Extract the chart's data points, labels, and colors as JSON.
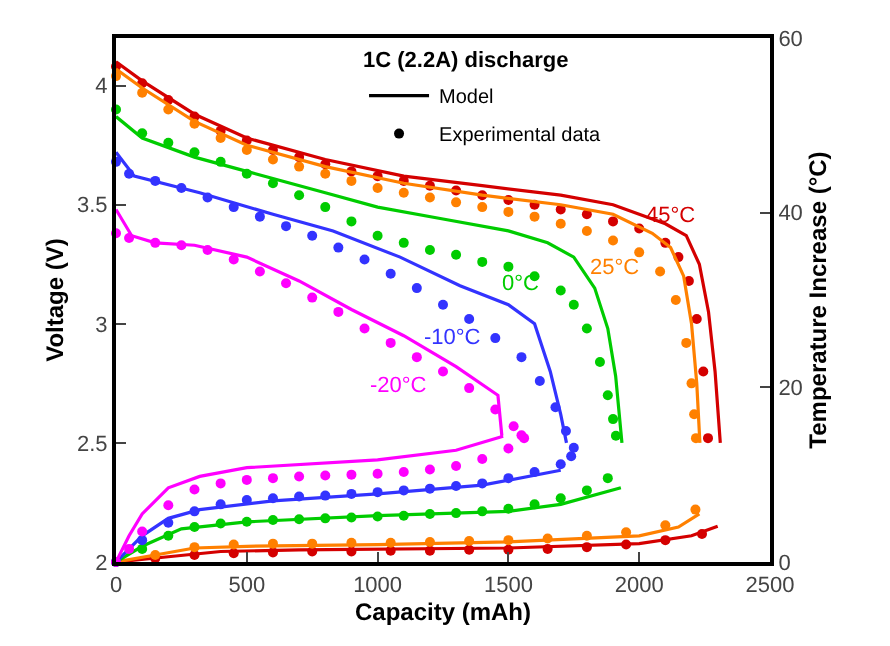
{
  "chart_data": {
    "type": "line",
    "xlabel": "Capacity (mAh)",
    "ylabel": "Voltage (V)",
    "y2label": "Temperature Increase (°C)",
    "legend_title": "1C (2.2A) discharge",
    "legend": "top right",
    "line_style": "solid",
    "xlim": [
      0,
      2500
    ],
    "xticks": [
      0,
      500,
      1000,
      1500,
      2000,
      2500
    ],
    "ylim": [
      2,
      4.2
    ],
    "yticks": [
      2,
      2.5,
      3,
      3.5,
      4
    ],
    "y2lim": [
      0,
      60
    ],
    "y2ticks": [
      0,
      20,
      40,
      60
    ],
    "annotations": [
      {
        "text": "45°C",
        "x": 2180,
        "y": 3.37
      },
      {
        "text": "25°C",
        "x": 2120,
        "y": 3.32
      },
      {
        "text": "0°C",
        "x": 1750,
        "y": 3.28
      },
      {
        "text": "-10°C",
        "x": 1315,
        "y": 3.16
      },
      {
        "text": "-20°C",
        "x": 1100,
        "y": 2.95
      }
    ],
    "series": [
      {
        "name": "Model",
        "color": "#000000"
      },
      {
        "type": "scatter",
        "marker": "circle",
        "name": "Experimental data",
        "color": "#000000"
      },
      {
        "color": "#d40000",
        "x": [
          0,
          100,
          300,
          500,
          800,
          1100,
          1400,
          1700,
          1900,
          2100,
          2180,
          2230,
          2265,
          2290,
          2310
        ],
        "values": [
          4.1,
          4.02,
          3.88,
          3.78,
          3.69,
          3.62,
          3.58,
          3.54,
          3.5,
          3.42,
          3.37,
          3.25,
          3.05,
          2.8,
          2.5
        ]
      },
      {
        "type": "scatter",
        "marker": "circle",
        "color": "#d40000",
        "x": [
          0,
          100,
          200,
          300,
          400,
          500,
          600,
          700,
          800,
          900,
          1000,
          1100,
          1200,
          1300,
          1400,
          1500,
          1600,
          1700,
          1800,
          1900,
          2000,
          2100,
          2150,
          2190,
          2220,
          2245,
          2263
        ],
        "values": [
          4.08,
          4.01,
          3.94,
          3.87,
          3.81,
          3.77,
          3.73,
          3.7,
          3.67,
          3.64,
          3.62,
          3.6,
          3.58,
          3.56,
          3.54,
          3.52,
          3.5,
          3.48,
          3.46,
          3.43,
          3.4,
          3.34,
          3.28,
          3.18,
          3.02,
          2.8,
          2.52
        ]
      },
      {
        "color": "#ff8000",
        "x": [
          0,
          100,
          300,
          500,
          800,
          1100,
          1400,
          1700,
          1900,
          2050,
          2120,
          2170,
          2200,
          2220,
          2232
        ],
        "values": [
          4.07,
          3.99,
          3.85,
          3.75,
          3.66,
          3.59,
          3.54,
          3.5,
          3.46,
          3.38,
          3.32,
          3.2,
          3.0,
          2.75,
          2.5
        ]
      },
      {
        "type": "scatter",
        "marker": "circle",
        "color": "#ff8000",
        "x": [
          0,
          100,
          200,
          300,
          400,
          500,
          600,
          700,
          800,
          900,
          1000,
          1100,
          1200,
          1300,
          1400,
          1500,
          1600,
          1700,
          1800,
          1900,
          2000,
          2080,
          2140,
          2180,
          2200,
          2210,
          2217
        ],
        "values": [
          4.04,
          3.97,
          3.9,
          3.84,
          3.78,
          3.73,
          3.69,
          3.66,
          3.63,
          3.6,
          3.57,
          3.55,
          3.53,
          3.51,
          3.49,
          3.47,
          3.45,
          3.42,
          3.39,
          3.35,
          3.3,
          3.22,
          3.1,
          2.92,
          2.75,
          2.62,
          2.52
        ]
      },
      {
        "color": "#00cc00",
        "x": [
          0,
          100,
          300,
          500,
          800,
          1000,
          1250,
          1500,
          1650,
          1750,
          1830,
          1880,
          1910,
          1934
        ],
        "values": [
          3.87,
          3.78,
          3.7,
          3.64,
          3.55,
          3.49,
          3.44,
          3.39,
          3.34,
          3.28,
          3.15,
          2.98,
          2.78,
          2.5
        ]
      },
      {
        "type": "scatter",
        "marker": "circle",
        "color": "#00cc00",
        "x": [
          0,
          100,
          200,
          300,
          400,
          500,
          600,
          700,
          800,
          900,
          1000,
          1100,
          1200,
          1300,
          1400,
          1500,
          1600,
          1700,
          1750,
          1800,
          1850,
          1880,
          1900,
          1911
        ],
        "values": [
          3.9,
          3.8,
          3.76,
          3.72,
          3.68,
          3.63,
          3.59,
          3.54,
          3.49,
          3.43,
          3.37,
          3.34,
          3.31,
          3.29,
          3.26,
          3.24,
          3.2,
          3.14,
          3.08,
          2.98,
          2.84,
          2.7,
          2.6,
          2.53
        ]
      },
      {
        "color": "#3333ff",
        "x": [
          0,
          70,
          320,
          600,
          830,
          1086,
          1315,
          1500,
          1600,
          1660,
          1700,
          1722
        ],
        "values": [
          3.72,
          3.62,
          3.55,
          3.46,
          3.39,
          3.28,
          3.16,
          3.08,
          3.0,
          2.8,
          2.62,
          2.5
        ]
      },
      {
        "type": "scatter",
        "marker": "circle",
        "color": "#3333ff",
        "x": [
          0,
          50,
          150,
          250,
          350,
          450,
          550,
          650,
          750,
          850,
          950,
          1050,
          1150,
          1250,
          1350,
          1450,
          1550,
          1620,
          1680,
          1720,
          1750
        ],
        "values": [
          3.68,
          3.63,
          3.6,
          3.57,
          3.53,
          3.49,
          3.45,
          3.41,
          3.37,
          3.32,
          3.27,
          3.21,
          3.15,
          3.08,
          3.02,
          2.94,
          2.86,
          2.76,
          2.65,
          2.55,
          2.48
        ]
      },
      {
        "color": "#ff00ff",
        "x": [
          0,
          60,
          150,
          300,
          500,
          700,
          900,
          1100,
          1300,
          1460,
          1475
        ],
        "values": [
          3.48,
          3.37,
          3.34,
          3.33,
          3.28,
          3.18,
          3.06,
          2.95,
          2.82,
          2.7,
          2.53
        ]
      },
      {
        "type": "scatter",
        "marker": "circle",
        "color": "#ff00ff",
        "x": [
          0,
          50,
          150,
          250,
          350,
          450,
          550,
          650,
          750,
          850,
          950,
          1050,
          1150,
          1250,
          1350,
          1450,
          1520,
          1560
        ],
        "values": [
          3.38,
          3.36,
          3.34,
          3.33,
          3.31,
          3.27,
          3.22,
          3.17,
          3.11,
          3.05,
          2.98,
          2.92,
          2.86,
          2.8,
          2.73,
          2.64,
          2.57,
          2.52
        ]
      },
      {
        "axis": "y2",
        "color": "#d40000",
        "x": [
          0,
          200,
          400,
          700,
          1500,
          2000,
          2200,
          2300
        ],
        "values": [
          0,
          0.6,
          1.2,
          1.4,
          1.6,
          2.1,
          3,
          4.1
        ]
      },
      {
        "type": "scatter",
        "marker": "circle",
        "axis": "y2",
        "color": "#d40000",
        "x": [
          150,
          300,
          450,
          600,
          750,
          900,
          1050,
          1200,
          1350,
          1500,
          1650,
          1800,
          1950,
          2100,
          2240
        ],
        "values": [
          0.4,
          0.8,
          1,
          1.1,
          1.2,
          1.2,
          1.3,
          1.3,
          1.4,
          1.4,
          1.5,
          1.7,
          2,
          2.5,
          3.2
        ]
      },
      {
        "axis": "y2",
        "color": "#ff8000",
        "x": [
          0,
          150,
          300,
          500,
          1000,
          1500,
          2000,
          2150,
          2230
        ],
        "values": [
          0,
          0.8,
          1.6,
          1.8,
          2,
          2.3,
          3,
          4,
          5.5
        ]
      },
      {
        "type": "scatter",
        "marker": "circle",
        "axis": "y2",
        "color": "#ff8000",
        "x": [
          150,
          300,
          450,
          600,
          750,
          900,
          1050,
          1200,
          1350,
          1500,
          1650,
          1800,
          1950,
          2100,
          2215
        ],
        "values": [
          0.8,
          1.7,
          2,
          2.1,
          2.1,
          2.2,
          2.2,
          2.3,
          2.4,
          2.5,
          2.7,
          3,
          3.4,
          4.2,
          6
        ]
      },
      {
        "axis": "y2",
        "color": "#00cc00",
        "x": [
          0,
          100,
          250,
          500,
          1000,
          1500,
          1700,
          1930
        ],
        "values": [
          0,
          1.8,
          3.8,
          4.6,
          5.3,
          5.8,
          6.6,
          8.5
        ]
      },
      {
        "type": "scatter",
        "marker": "circle",
        "axis": "y2",
        "color": "#00cc00",
        "x": [
          0,
          100,
          200,
          300,
          400,
          500,
          600,
          700,
          800,
          900,
          1000,
          1100,
          1200,
          1300,
          1400,
          1500,
          1600,
          1700,
          1800,
          1880
        ],
        "values": [
          0,
          1.5,
          3,
          4,
          4.4,
          4.6,
          4.8,
          4.9,
          5,
          5.1,
          5.2,
          5.3,
          5.5,
          5.6,
          5.8,
          6.1,
          6.6,
          7.3,
          8.2,
          9.6
        ]
      },
      {
        "axis": "y2",
        "color": "#3333ff",
        "x": [
          0,
          100,
          200,
          320,
          600,
          1000,
          1400,
          1700
        ],
        "values": [
          0,
          3,
          5,
          6,
          7,
          7.8,
          8.8,
          10.5
        ]
      },
      {
        "type": "scatter",
        "marker": "circle",
        "axis": "y2",
        "color": "#3333ff",
        "x": [
          0,
          100,
          200,
          300,
          400,
          500,
          600,
          700,
          800,
          900,
          1000,
          1100,
          1200,
          1300,
          1400,
          1500,
          1600,
          1700,
          1740
        ],
        "values": [
          0,
          2.5,
          4.5,
          5.8,
          6.6,
          7.1,
          7.3,
          7.5,
          7.6,
          7.8,
          8,
          8.2,
          8.4,
          8.7,
          9,
          9.6,
          10.3,
          11.2,
          12.1
        ]
      },
      {
        "axis": "y2",
        "color": "#ff00ff",
        "x": [
          0,
          50,
          100,
          200,
          320,
          500,
          1000,
          1300,
          1480
        ],
        "values": [
          0,
          3,
          5.5,
          8.5,
          9.8,
          10.8,
          11.7,
          12.8,
          14.4
        ]
      },
      {
        "type": "scatter",
        "marker": "circle",
        "axis": "y2",
        "color": "#ff00ff",
        "x": [
          0,
          50,
          100,
          200,
          300,
          400,
          500,
          600,
          700,
          800,
          900,
          1000,
          1100,
          1200,
          1300,
          1400,
          1500,
          1550
        ],
        "values": [
          0,
          1.5,
          3.5,
          6.5,
          8.3,
          9,
          9.4,
          9.6,
          9.8,
          9.9,
          10,
          10.1,
          10.3,
          10.6,
          11,
          11.8,
          13,
          14.5
        ]
      }
    ]
  }
}
